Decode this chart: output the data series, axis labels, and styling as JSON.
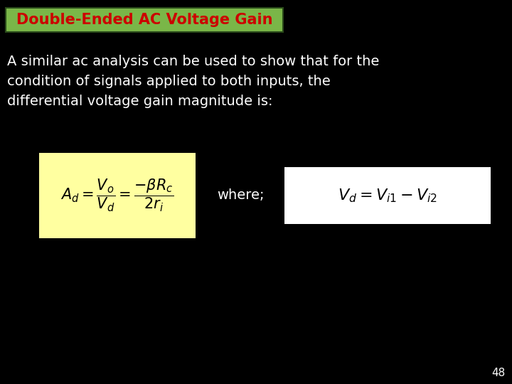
{
  "background_color": "#000000",
  "title_text": "Double-Ended AC Voltage Gain",
  "title_bg_color": "#7ab648",
  "title_text_color": "#cc0000",
  "title_border_color": "#2a4a1a",
  "body_text_line1": "A similar ac analysis can be used to show that for the",
  "body_text_line2": "condition of signals applied to both inputs, the",
  "body_text_line3": "differential voltage gain magnitude is:",
  "body_text_color": "#ffffff",
  "formula1_bg": "#ffffa0",
  "formula1_latex": "$A_d = \\dfrac{V_o}{V_d} = \\dfrac{-\\beta R_c}{2r_i}$",
  "where_text": "where;",
  "formula2_bg": "#ffffff",
  "formula2_latex": "$V_d = V_{i1} - V_{i2}$",
  "page_number": "48",
  "page_number_color": "#ffffff",
  "title_fontsize": 15,
  "body_fontsize": 14,
  "formula1_fontsize": 15,
  "formula2_fontsize": 16,
  "where_fontsize": 14
}
